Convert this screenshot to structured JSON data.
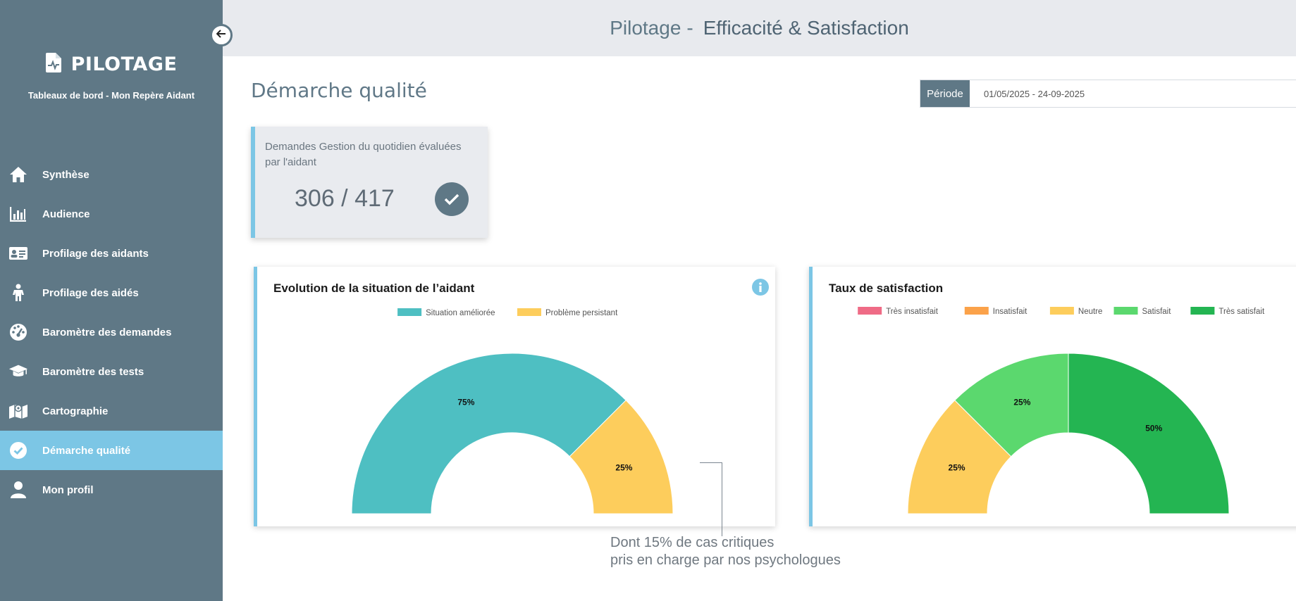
{
  "app": {
    "brand_title": "PILOTAGE",
    "brand_subtitle": "Tableaux de bord - Mon Repère Aidant"
  },
  "header": {
    "title_prefix": "Pilotage",
    "title_separator": "-",
    "title_main": "Efficacité & Satisfaction"
  },
  "sidebar": {
    "items": [
      {
        "label": "Synthèse",
        "icon": "home-icon",
        "active": false
      },
      {
        "label": "Audience",
        "icon": "bar-chart-icon",
        "active": false
      },
      {
        "label": "Profilage des aidants",
        "icon": "id-card-icon",
        "active": false
      },
      {
        "label": "Profilage des aidés",
        "icon": "child-icon",
        "active": false
      },
      {
        "label": "Baromètre des demandes",
        "icon": "gauge-icon",
        "active": false
      },
      {
        "label": "Baromètre des tests",
        "icon": "graduation-cap-icon",
        "active": false
      },
      {
        "label": "Cartographie",
        "icon": "map-icon",
        "active": false
      },
      {
        "label": "Démarche qualité",
        "icon": "check-circle-icon",
        "active": true
      },
      {
        "label": "Mon profil",
        "icon": "user-icon",
        "active": false
      }
    ]
  },
  "main": {
    "page_title": "Démarche qualité",
    "period": {
      "label": "Période",
      "value": "01/05/2025 - 24-09-2025"
    },
    "kpi": {
      "label": "Demandes Gestion du quotidien évaluées par l'aidant",
      "value": "306 / 417"
    },
    "annotation": {
      "line1": "Dont 15% de cas critiques",
      "line2": "pris en charge par nos psychologues"
    }
  },
  "colors": {
    "sidebar_bg": "#5f7886",
    "accent": "#7cc6e5",
    "teal": "#4ebfc2",
    "yellow": "#fdcd5c",
    "pink": "#ef6b86",
    "orange": "#fba24a",
    "light_green": "#5bd86e",
    "dark_green": "#24b552"
  },
  "chart_data": [
    {
      "type": "pie",
      "subtype": "half-doughnut",
      "title": "Evolution de la situation de l’aidant",
      "legend_position": "top",
      "series": [
        {
          "name": "Situation améliorée",
          "value": 75,
          "label": "75%",
          "color": "#4ebfc2"
        },
        {
          "name": "Problème persistant",
          "value": 25,
          "label": "25%",
          "color": "#fdcd5c"
        }
      ]
    },
    {
      "type": "pie",
      "subtype": "half-doughnut",
      "title": "Taux de satisfaction",
      "legend_position": "top",
      "series": [
        {
          "name": "Très insatisfait",
          "value": 0,
          "label": "",
          "color": "#ef6b86"
        },
        {
          "name": "Insatisfait",
          "value": 0,
          "label": "",
          "color": "#fba24a"
        },
        {
          "name": "Neutre",
          "value": 25,
          "label": "25%",
          "color": "#fdcd5c"
        },
        {
          "name": "Satisfait",
          "value": 25,
          "label": "25%",
          "color": "#5bd86e"
        },
        {
          "name": "Très satisfait",
          "value": 50,
          "label": "50%",
          "color": "#24b552"
        }
      ]
    }
  ]
}
